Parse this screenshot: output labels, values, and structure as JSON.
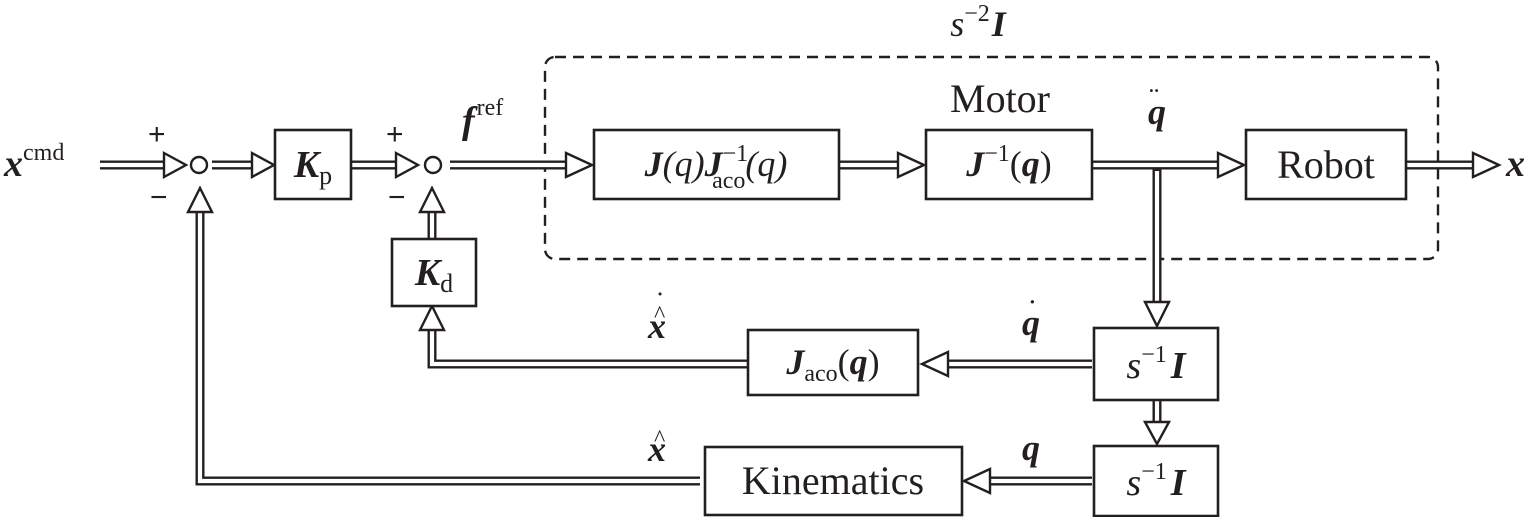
{
  "diagram": {
    "group_label": {
      "base": "s",
      "sup": "−2",
      "sym": "I"
    },
    "group_inner_label": "Motor",
    "blocks": {
      "kp": {
        "sym": "K",
        "sub": "p"
      },
      "kd": {
        "sym": "K",
        "sub": "d"
      },
      "jjaco": {
        "j": "J",
        "q1": "(q)",
        "j2": "J",
        "sup": "−1",
        "sub": "aco",
        "q2": "(q)"
      },
      "jinv": {
        "j": "J",
        "sup": "−1",
        "lp": "(",
        "q": "q",
        "rp": ")"
      },
      "robot": "Robot",
      "jaco": {
        "j": "J",
        "sub": "aco",
        "lp": "(",
        "q": "q",
        "rp": ")"
      },
      "integ1": {
        "base": "s",
        "sup": "−1",
        "sym": "I"
      },
      "integ2": {
        "base": "s",
        "sup": "−1",
        "sym": "I"
      },
      "kinematics": "Kinematics"
    },
    "signals": {
      "xcmd": {
        "sym": "x",
        "sup": "cmd"
      },
      "fref": {
        "sym": "f",
        "sup": "ref"
      },
      "qddot": {
        "sym": "q",
        "accent": "¨"
      },
      "x_out": "x",
      "qdot": {
        "sym": "q",
        "accent": "˙"
      },
      "xhatdot": {
        "sym": "x",
        "accent": "^",
        "accent2": "˙"
      },
      "q": "q",
      "xhat": {
        "sym": "x",
        "accent": "^"
      }
    },
    "signs": {
      "sum1_plus": "+",
      "sum1_minus": "−",
      "sum2_plus": "+",
      "sum2_minus": "−"
    }
  }
}
